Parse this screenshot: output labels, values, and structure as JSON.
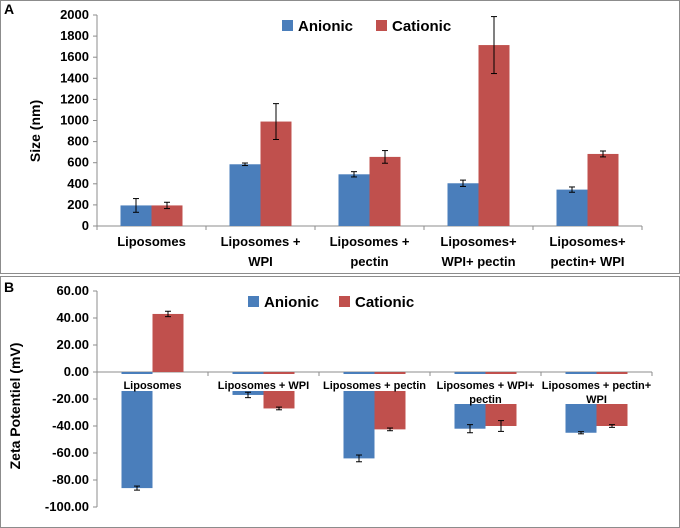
{
  "colors": {
    "anionic": "#4a7ebb",
    "cationic": "#c0504d",
    "axis": "#8c8c8c"
  },
  "chart_data": [
    {
      "type": "bar",
      "panel_label": "A",
      "ylabel": "Size (nm)",
      "xlabel": "",
      "ylim": [
        0,
        2000
      ],
      "yticks": [
        "0",
        "200",
        "400",
        "600",
        "800",
        "1000",
        "1200",
        "1400",
        "1600",
        "1800",
        "2000"
      ],
      "ytick_values": [
        0,
        200,
        400,
        600,
        800,
        1000,
        1200,
        1400,
        1600,
        1800,
        2000
      ],
      "legend_position": "top",
      "categories": [
        [
          "Liposomes"
        ],
        [
          "Liposomes +",
          "WPI"
        ],
        [
          "Liposomes +",
          "pectin"
        ],
        [
          "Liposomes+",
          "WPI+ pectin"
        ],
        [
          "Liposomes+",
          "pectin+ WPI"
        ]
      ],
      "series": [
        {
          "name": "Anionic",
          "values": [
            195,
            585,
            490,
            405,
            345
          ],
          "errors": [
            65,
            12,
            25,
            30,
            25
          ]
        },
        {
          "name": "Cationic",
          "values": [
            195,
            990,
            655,
            1715,
            683
          ],
          "errors": [
            30,
            170,
            60,
            270,
            28
          ]
        }
      ]
    },
    {
      "type": "bar",
      "panel_label": "B",
      "ylabel": "Zeta Potentiel (mV)",
      "xlabel": "",
      "ylim": [
        -100,
        60
      ],
      "yticks": [
        "-100.00",
        "-80.00",
        "-60.00",
        "-40.00",
        "-20.00",
        "0.00",
        "20.00",
        "40.00",
        "60.00"
      ],
      "ytick_values": [
        -100,
        -80,
        -60,
        -40,
        -20,
        0,
        20,
        40,
        60
      ],
      "legend_position": "top",
      "categories": [
        [
          "Liposomes"
        ],
        [
          "Liposomes + WPI"
        ],
        [
          "Liposomes + pectin"
        ],
        [
          "Liposomes + WPI+",
          "pectin"
        ],
        [
          "Liposomes + pectin+",
          "WPI"
        ]
      ],
      "series": [
        {
          "name": "Anionic",
          "values": [
            -86,
            -17,
            -64,
            -42,
            -45
          ],
          "errors": [
            1.5,
            2,
            2.5,
            3,
            0.8
          ]
        },
        {
          "name": "Cationic",
          "values": [
            43,
            -27,
            -42.5,
            -40,
            -40
          ],
          "errors": [
            2,
            1,
            1,
            4,
            1
          ]
        }
      ]
    }
  ]
}
